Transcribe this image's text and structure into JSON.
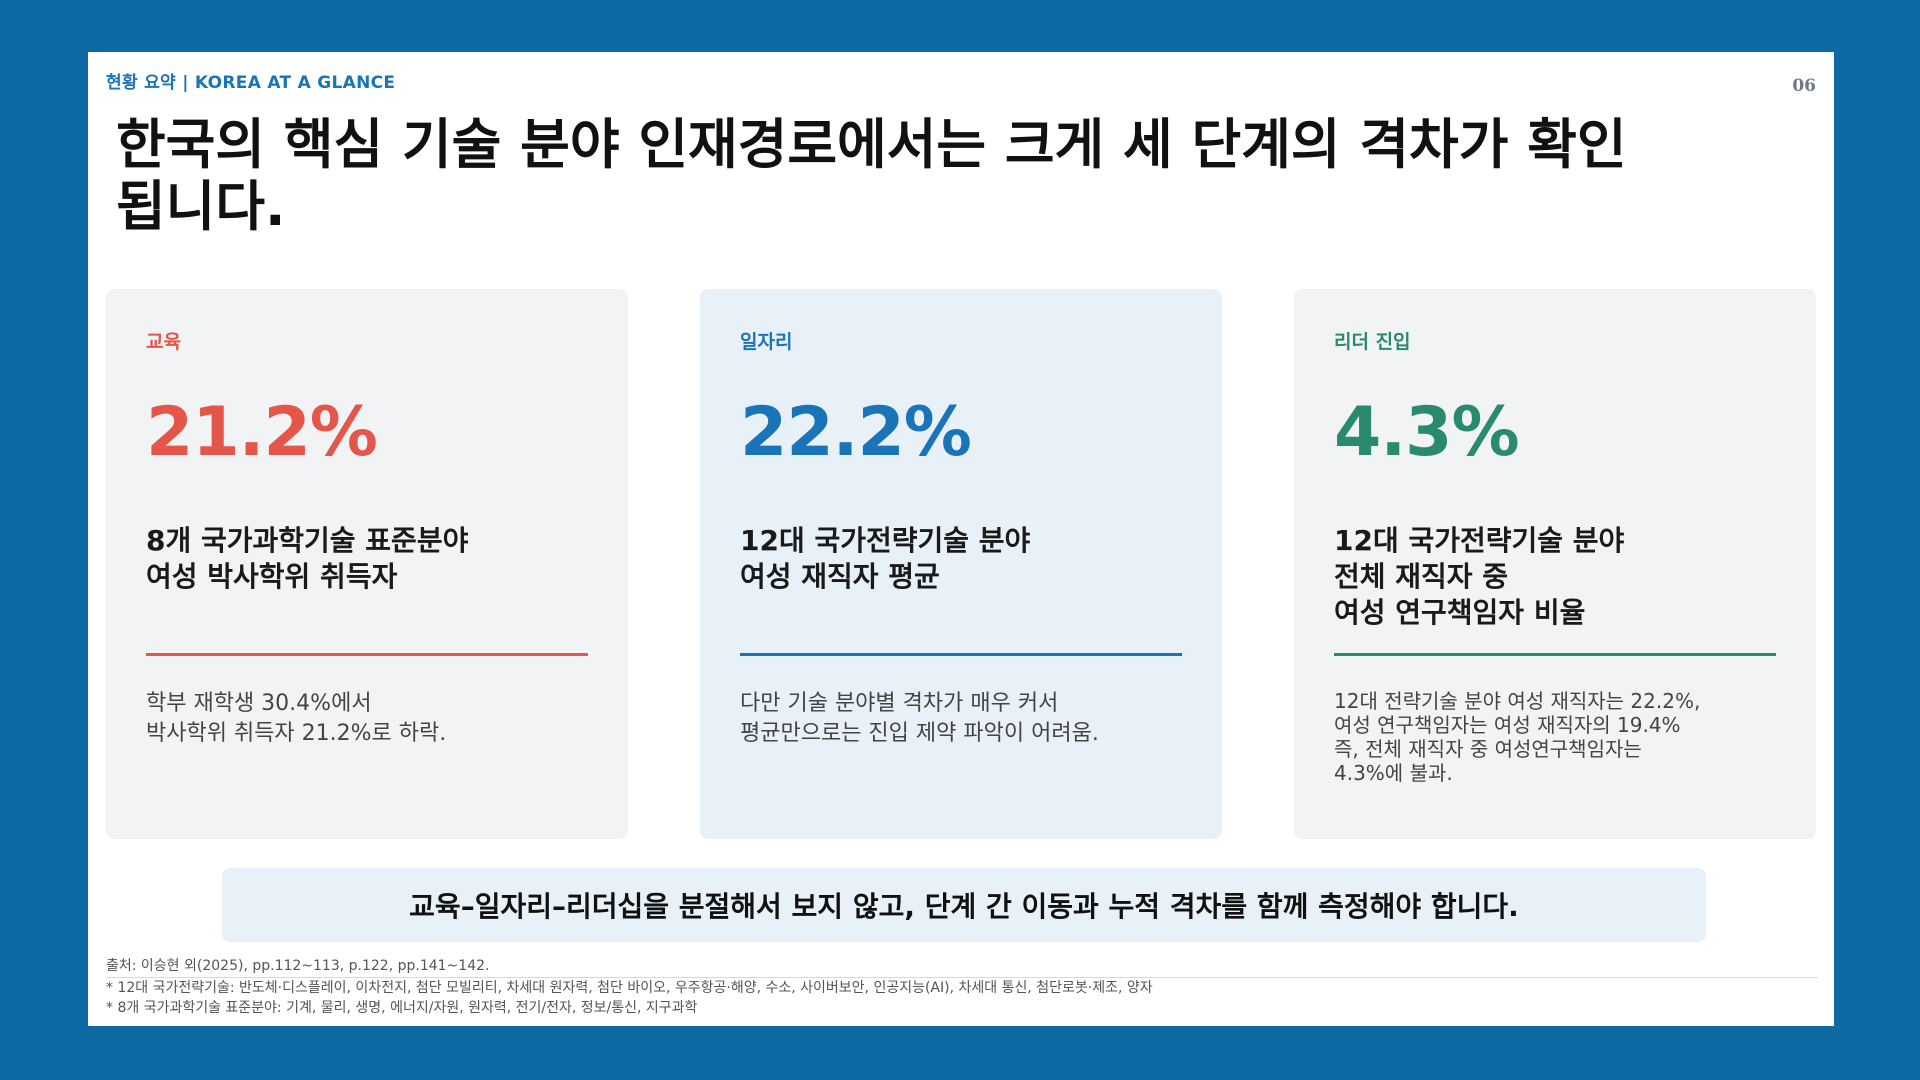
{
  "slide": {
    "kicker": "현황 요약  |  KOREA AT A GLANCE",
    "page_number": "06",
    "title": "한국의 핵심 기술 분야 인재경로에서는 크게 세 단계의 격차가 확인됩니다."
  },
  "cards": [
    {
      "label": "교육",
      "value": "21.2%",
      "headline": "8개 국가과학기술 표준분야\n여성 박사학위 취득자",
      "description": "학부 재학생 30.4%에서\n박사학위 취득자 21.2%로 하락.",
      "accent": "#e4554a"
    },
    {
      "label": "일자리",
      "value": "22.2%",
      "headline": "12대 국가전략기술 분야\n여성 재직자 평균",
      "description": "다만 기술 분야별 격차가 매우 커서\n평균만으로는 진입 제약 파악이 어려움.",
      "accent": "#1a74b8"
    },
    {
      "label": "리더 진입",
      "value": "4.3%",
      "headline": "12대 국가전략기술 분야\n전체 재직자 중\n여성 연구책임자 비율",
      "description": "12대 전략기술 분야 여성 재직자는 22.2%,\n여성 연구책임자는 여성 재직자의 19.4%\n즉, 전체 재직자 중 여성연구책임자는\n4.3%에 불과.",
      "accent": "#2a8a6e"
    }
  ],
  "banner": {
    "text": "교육–일자리–리더십을 분절해서 보지 않고, 단계 간 이동과 누적 격차를 함께 측정해야 합니다."
  },
  "footer": {
    "source": "출처: 이승현 외(2025), pp.112~113, p.122, pp.141~142.",
    "note_1": "* 12대 국가전략기술: 반도체·디스플레이, 이차전지, 첨단 모빌리티, 차세대 원자력, 첨단 바이오, 우주항공·해양, 수소, 사이버보안, 인공지능(AI), 차세대 통신, 첨단로봇·제조, 양자",
    "note_2": "* 8개 국가과학기술 표준분야: 기계, 물리, 생명, 에너지/자원, 원자력, 전기/전자, 정보/통신, 지구과학"
  }
}
